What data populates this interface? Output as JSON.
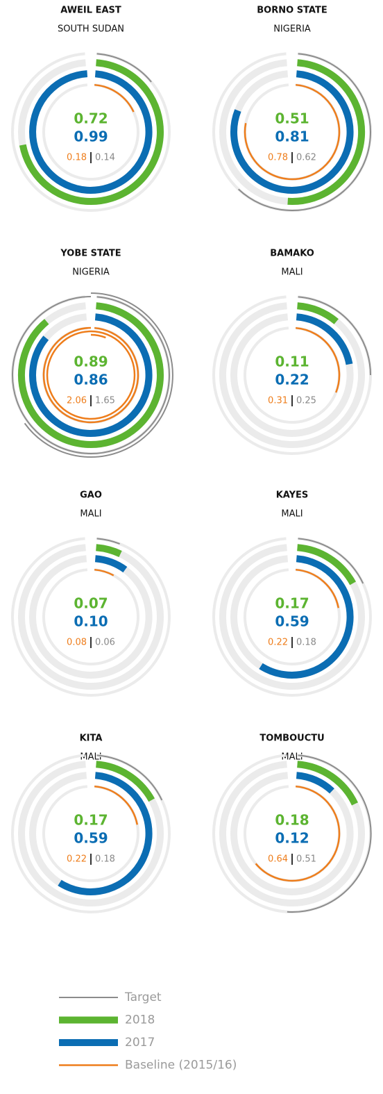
{
  "legend": [
    {
      "name": "Target",
      "color": "#8c8c8c"
    },
    {
      "name": "2018",
      "color": "#5cb431"
    },
    {
      "name": "2017",
      "color": "#0b6db3"
    },
    {
      "name": "Baseline (2015/16)",
      "color": "#ee7d1b"
    }
  ],
  "chart_data": [
    {
      "type": "radial",
      "title": "AWEIL EAST",
      "subtitle": "SOUTH SUDAN",
      "values": [
        0.14,
        0.72,
        0.99,
        0.18
      ],
      "value_labels": [
        "0.14",
        "0.72",
        "0.99",
        "0.18"
      ]
    },
    {
      "type": "radial",
      "title": "BORNO STATE",
      "subtitle": "NIGERIA",
      "values": [
        0.62,
        0.51,
        0.81,
        0.78
      ],
      "value_labels": [
        "0.62",
        "0.51",
        "0.81",
        "0.78"
      ]
    },
    {
      "type": "radial",
      "title": "YOBE STATE",
      "subtitle": "NIGERIA",
      "values": [
        1.65,
        0.89,
        0.86,
        2.06
      ],
      "value_labels": [
        "1.65",
        "0.89",
        "0.86",
        "2.06"
      ]
    },
    {
      "type": "radial",
      "title": "BAMAKO",
      "subtitle": "MALI",
      "values": [
        0.25,
        0.11,
        0.22,
        0.31
      ],
      "value_labels": [
        "0.25",
        "0.11",
        "0.22",
        "0.31"
      ]
    },
    {
      "type": "radial",
      "title": "GAO",
      "subtitle": "MALI",
      "values": [
        0.06,
        0.07,
        0.1,
        0.08
      ],
      "value_labels": [
        "0.06",
        "0.07",
        "0.10",
        "0.08"
      ]
    },
    {
      "type": "radial",
      "title": "KAYES",
      "subtitle": "MALI",
      "values": [
        0.18,
        0.17,
        0.59,
        0.22
      ],
      "value_labels": [
        "0.18",
        "0.17",
        "0.59",
        "0.22"
      ]
    },
    {
      "type": "radial",
      "title": "KITA",
      "subtitle": "MALI",
      "values": [
        0.18,
        0.17,
        0.59,
        0.22
      ],
      "value_labels": [
        "0.18",
        "0.17",
        "0.59",
        "0.22"
      ]
    },
    {
      "type": "radial",
      "title": "TOMBOUCTU",
      "subtitle": "MALI",
      "values": [
        0.51,
        0.18,
        0.12,
        0.64
      ],
      "value_labels": [
        "0.51",
        "0.18",
        "0.12",
        "0.64"
      ]
    }
  ]
}
